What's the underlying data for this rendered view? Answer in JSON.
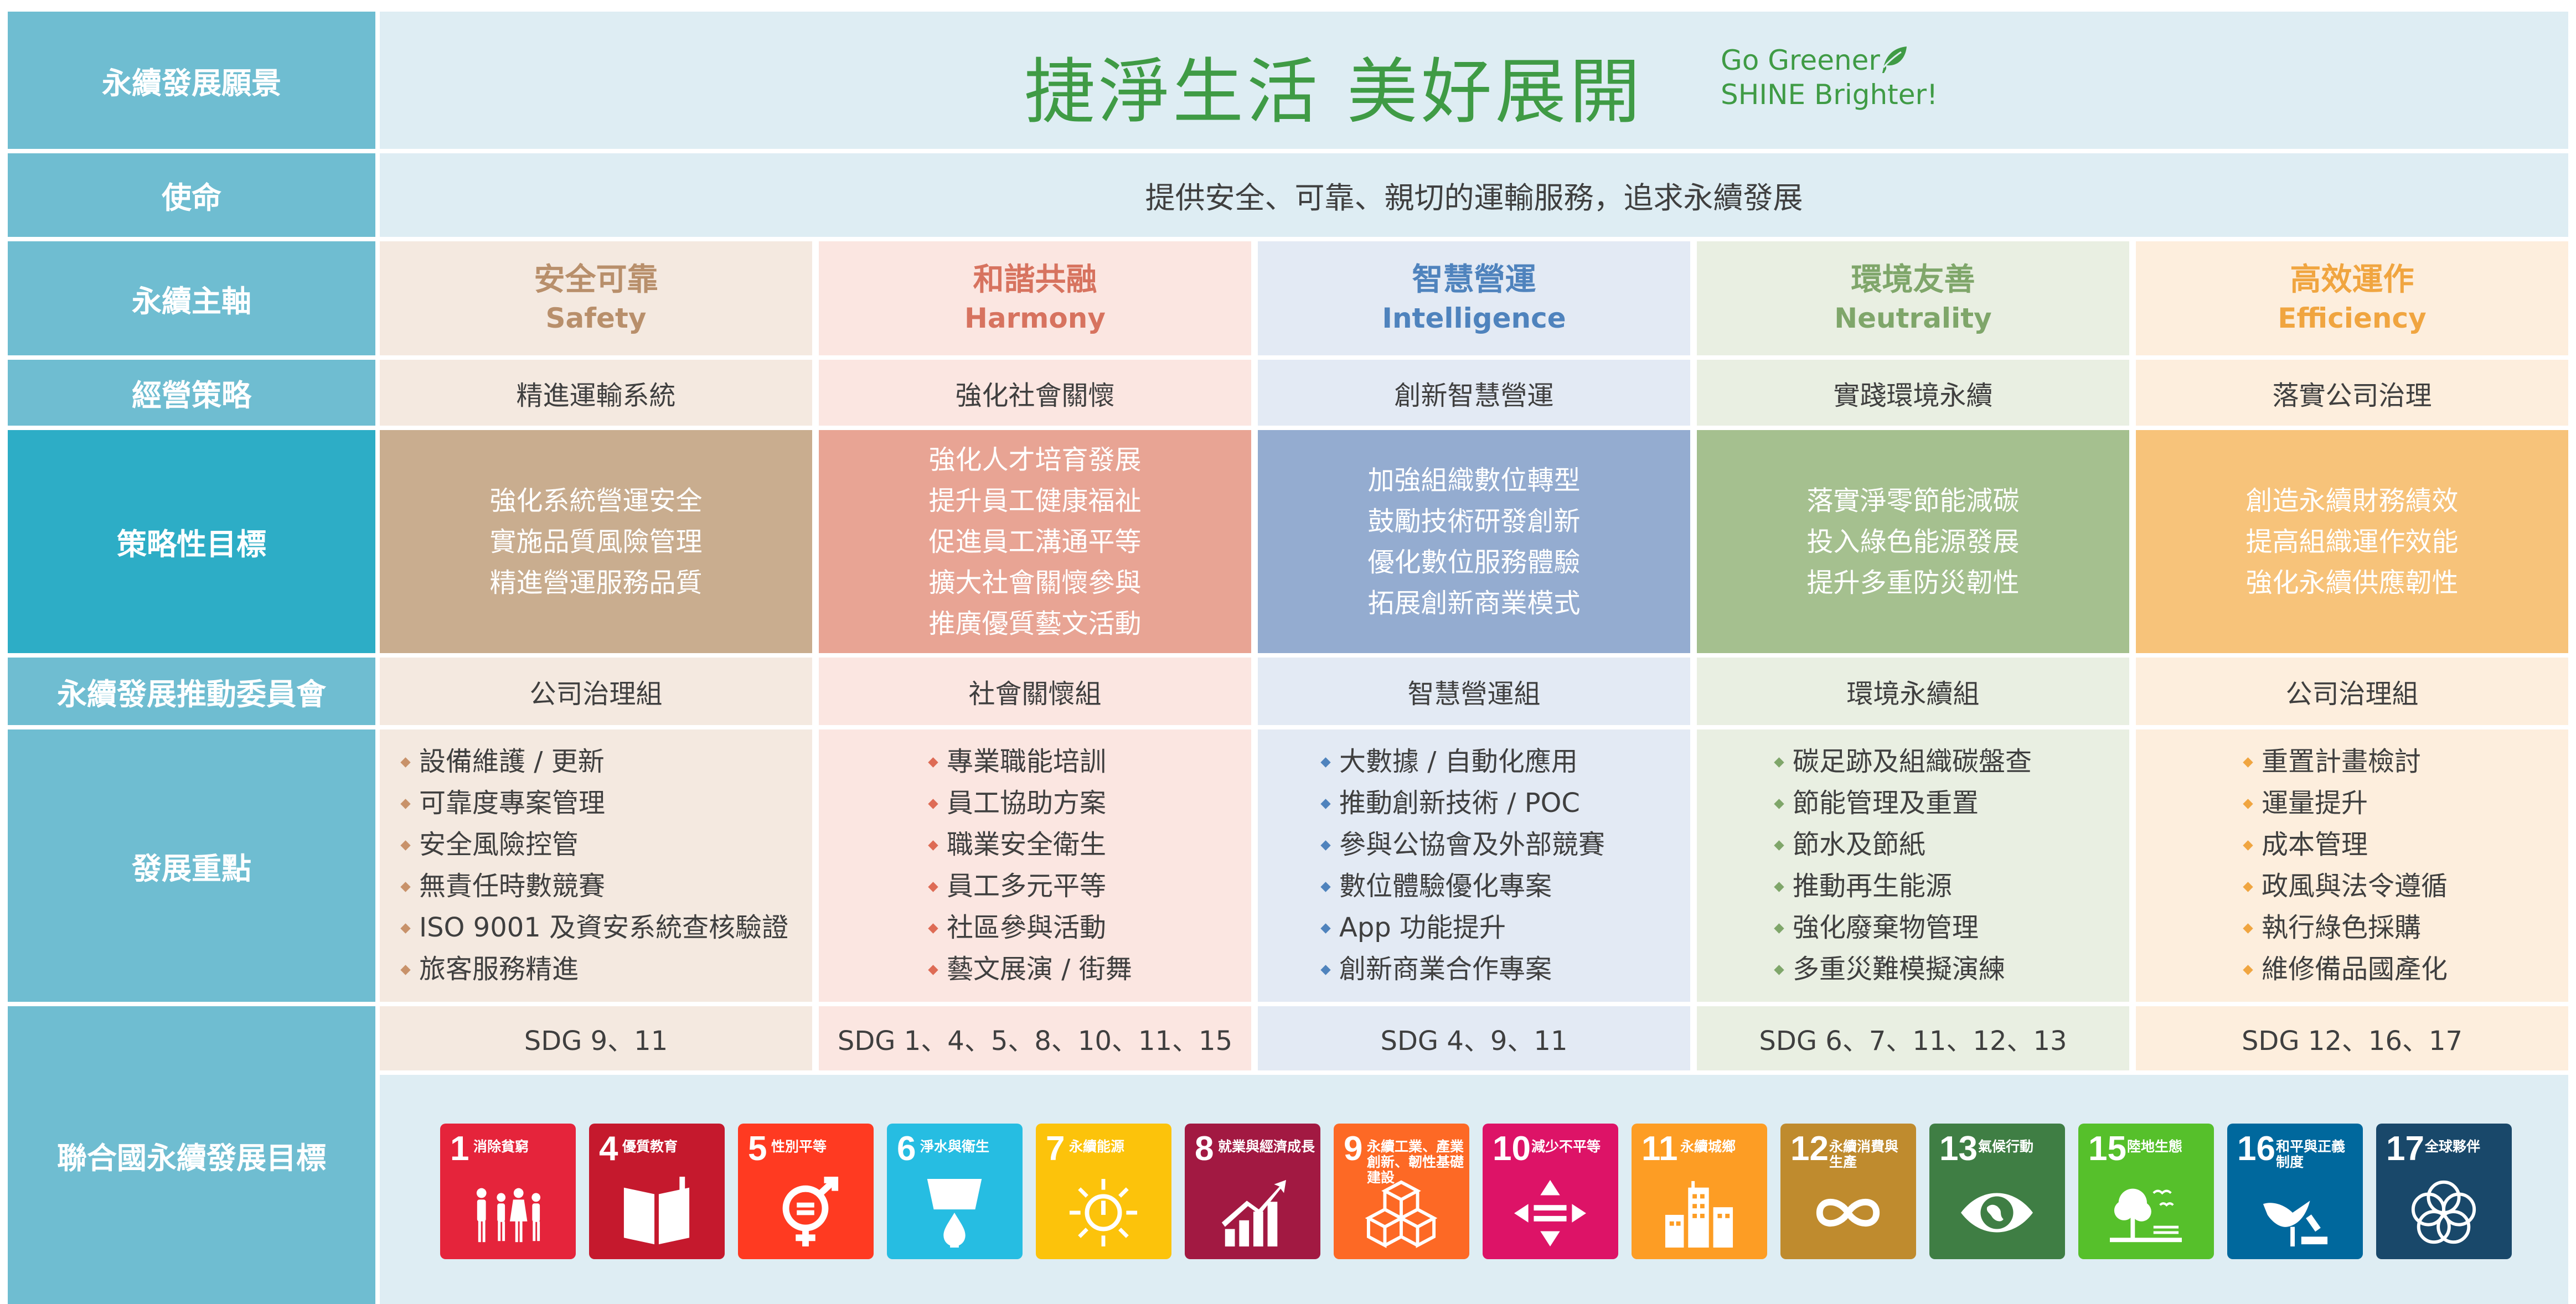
{
  "row_labels": {
    "vision": "永續發展願景",
    "mission": "使命",
    "pillars": "永續主軸",
    "strategy": "經營策略",
    "objectives": "策略性目標",
    "committee": "永續發展推動委員會",
    "focus": "發展重點",
    "un_sdgs": "聯合國永續發展目標"
  },
  "vision": {
    "slogan_cn": "捷淨生活 美好展開",
    "slogan_en_line1": "Go Greener,",
    "slogan_en_line2": "SHINE Brighter!"
  },
  "mission": "提供安全、可靠、親切的運輸服務，追求永續發展",
  "columns": [
    {
      "pillar_cn": "安全可靠",
      "pillar_en": "Safety",
      "strategy": "精進運輸系統",
      "objectives": [
        "強化系統營運安全",
        "實施品質風險管理",
        "精進營運服務品質"
      ],
      "committee": "公司治理組",
      "focus": [
        "設備維護 / 更新",
        "可靠度專案管理",
        "安全風險控管",
        "無責任時數競賽",
        "ISO 9001 及資安系統查核驗證",
        "旅客服務精進"
      ],
      "sdg": "SDG 9、11",
      "colors": {
        "title": "#b88f6b",
        "light": "#f4e9e0",
        "obj": "#c9ad8f",
        "bullet": "#c8926a"
      }
    },
    {
      "pillar_cn": "和諧共融",
      "pillar_en": "Harmony",
      "strategy": "強化社會關懷",
      "objectives": [
        "強化人才培育發展",
        "提升員工健康福祉",
        "促進員工溝通平等",
        "擴大社會關懷參與",
        "推廣優質藝文活動"
      ],
      "committee": "社會關懷組",
      "focus": [
        "專業職能培訓",
        "員工協助方案",
        "職業安全衛生",
        "員工多元平等",
        "社區參與活動",
        "藝文展演 / 街舞"
      ],
      "sdg": "SDG 1、4、5、8、10、11、15",
      "colors": {
        "title": "#d7735f",
        "light": "#fbe6e1",
        "obj": "#e8a494",
        "bullet": "#de6b55"
      }
    },
    {
      "pillar_cn": "智慧營運",
      "pillar_en": "Intelligence",
      "strategy": "創新智慧營運",
      "objectives": [
        "加強組織數位轉型",
        "鼓勵技術研發創新",
        "優化數位服務體驗",
        "拓展創新商業模式"
      ],
      "committee": "智慧營運組",
      "focus": [
        "大數據 / 自動化應用",
        "推動創新技術 / POC",
        "參與公協會及外部競賽",
        "數位體驗優化專案",
        "App 功能提升",
        "創新商業合作專案"
      ],
      "sdg": "SDG 4、9、11",
      "colors": {
        "title": "#4f83bd",
        "light": "#e3eaf4",
        "obj": "#94acd0",
        "bullet": "#4f83bd"
      }
    },
    {
      "pillar_cn": "環境友善",
      "pillar_en": "Neutrality",
      "strategy": "實踐環境永續",
      "objectives": [
        "落實淨零節能減碳",
        "投入綠色能源發展",
        "提升多重防災韌性"
      ],
      "committee": "環境永續組",
      "focus": [
        "碳足跡及組織碳盤查",
        "節能管理及重置",
        "節水及節紙",
        "推動再生能源",
        "強化廢棄物管理",
        "多重災難模擬演練"
      ],
      "sdg": "SDG 6、7、11、12、13",
      "colors": {
        "title": "#7fa66a",
        "light": "#e9efe2",
        "obj": "#a5c08f",
        "bullet": "#7fa66a"
      }
    },
    {
      "pillar_cn": "高效運作",
      "pillar_en": "Efficiency",
      "strategy": "落實公司治理",
      "objectives": [
        "創造永續財務績效",
        "提高組織運作效能",
        "強化永續供應韌性"
      ],
      "committee": "公司治理組",
      "focus": [
        "重置計畫檢討",
        "運量提升",
        "成本管理",
        "政風與法令遵循",
        "執行綠色採購",
        "維修備品國產化"
      ],
      "sdg": "SDG 12、16、17",
      "colors": {
        "title": "#f0a540",
        "light": "#fdeedd",
        "obj": "#f7c37a",
        "bullet": "#f0a540"
      }
    }
  ],
  "sdg_tiles": [
    {
      "num": "1",
      "name": "消除貧窮",
      "icon": "family-icon",
      "color": "#e5243b"
    },
    {
      "num": "4",
      "name": "優質教育",
      "icon": "book-icon",
      "color": "#c5192d"
    },
    {
      "num": "5",
      "name": "性別平等",
      "icon": "gender-equality-icon",
      "color": "#ff3a21"
    },
    {
      "num": "6",
      "name": "淨水與衛生",
      "icon": "water-drop-icon",
      "color": "#26bde2"
    },
    {
      "num": "7",
      "name": "永續能源",
      "icon": "sun-power-icon",
      "color": "#fcc30b"
    },
    {
      "num": "8",
      "name": "就業與經濟成長",
      "icon": "growth-chart-icon",
      "color": "#a21942"
    },
    {
      "num": "9",
      "name": "永續工業、產業創新、韌性基礎建設",
      "icon": "cubes-icon",
      "color": "#fd6925"
    },
    {
      "num": "10",
      "name": "減少不平等",
      "icon": "equal-arrows-icon",
      "color": "#dd1367"
    },
    {
      "num": "11",
      "name": "永續城鄉",
      "icon": "city-icon",
      "color": "#fd9d24"
    },
    {
      "num": "12",
      "name": "永續消費與生產",
      "icon": "infinity-icon",
      "color": "#bf8b2e"
    },
    {
      "num": "13",
      "name": "氣候行動",
      "icon": "eye-globe-icon",
      "color": "#3f7e44"
    },
    {
      "num": "15",
      "name": "陸地生態",
      "icon": "tree-birds-icon",
      "color": "#56c02b"
    },
    {
      "num": "16",
      "name": "和平與正義制度",
      "icon": "dove-gavel-icon",
      "color": "#00689d"
    },
    {
      "num": "17",
      "name": "全球夥伴",
      "icon": "rings-icon",
      "color": "#19486a"
    }
  ]
}
